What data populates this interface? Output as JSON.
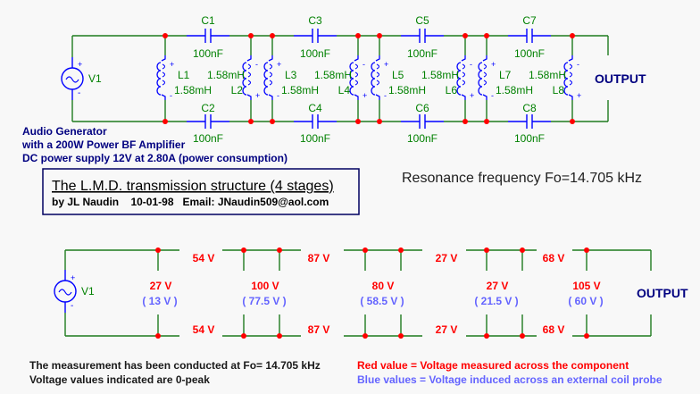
{
  "colors": {
    "wire": "#1e7b1e",
    "component": "#0000ff",
    "node": "#ff0000",
    "label": "#008000",
    "measured": "#ff0000",
    "probe": "#6464ff",
    "heading": "#000080"
  },
  "top_circuit": {
    "source": {
      "name": "V1",
      "plus": "+",
      "minus": "-"
    },
    "capacitors": [
      {
        "name": "C1",
        "value": "100nF"
      },
      {
        "name": "C2",
        "value": "100nF"
      },
      {
        "name": "C3",
        "value": "100nF"
      },
      {
        "name": "C4",
        "value": "100nF"
      },
      {
        "name": "C5",
        "value": "100nF"
      },
      {
        "name": "C6",
        "value": "100nF"
      },
      {
        "name": "C7",
        "value": "100nF"
      },
      {
        "name": "C8",
        "value": "100nF"
      }
    ],
    "inductors": [
      {
        "name": "L1",
        "value": "1.58mH"
      },
      {
        "name": "L2",
        "value": "1.58mH"
      },
      {
        "name": "L3",
        "value": "1.58mH"
      },
      {
        "name": "L4",
        "value": "1.58mH"
      },
      {
        "name": "L5",
        "value": "1.58mH"
      },
      {
        "name": "L6",
        "value": "1.58mH"
      },
      {
        "name": "L7",
        "value": "1.58mH"
      },
      {
        "name": "L8",
        "value": "1.58mH"
      }
    ],
    "output_label": "OUTPUT",
    "source_description": [
      "Audio Generator",
      "with a 200W Power BF Amplifier",
      "DC power supply 12V at 2.80A (power consumption)"
    ]
  },
  "title_box": {
    "title": "The L.M.D. transmission structure (4 stages)",
    "byline": "by JL Naudin    10-01-98   Email: JNaudin509@aol.com"
  },
  "resonance": "Resonance frequency Fo=14.705 kHz",
  "bottom_circuit": {
    "source": {
      "name": "V1",
      "plus": "+",
      "minus": "-"
    },
    "capacitor_voltages": [
      "54 V",
      "87 V",
      "27 V",
      "68 V"
    ],
    "stage_voltages": [
      {
        "measured": "27 V",
        "probe": "( 13 V )"
      },
      {
        "measured": "100 V",
        "probe": "( 77.5 V )"
      },
      {
        "measured": "80 V",
        "probe": "( 58.5 V )"
      },
      {
        "measured": "27 V",
        "probe": "( 21.5 V )"
      },
      {
        "measured": "105 V",
        "probe": "( 60 V )"
      }
    ],
    "output_label": "OUTPUT"
  },
  "notes": [
    "The measurement has been conducted at Fo= 14.705 kHz",
    "Voltage values indicated are 0-peak"
  ],
  "legend": {
    "red": "Red value = Voltage measured across the component",
    "blue": "Blue values = Voltage induced across an external coil probe"
  }
}
